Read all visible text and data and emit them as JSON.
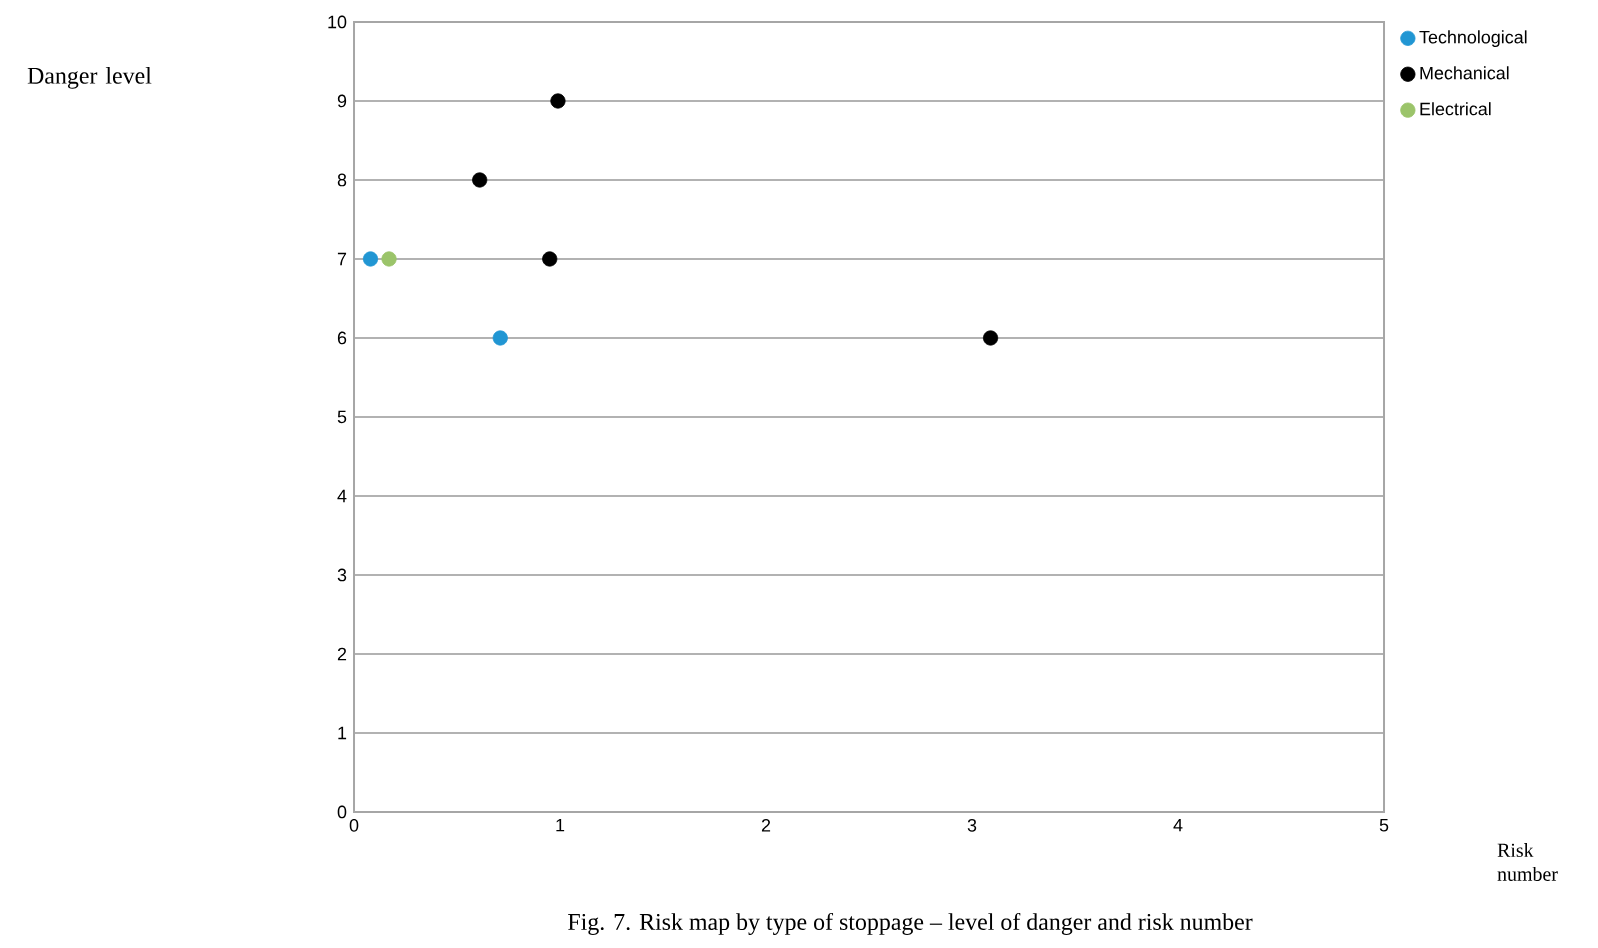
{
  "chart_data": {
    "type": "scatter",
    "annotations": [
      "Danger level",
      "Fig. 7. Risk map by type of stoppage – level of danger and risk number",
      "Risk number"
    ],
    "xlim": [
      0,
      5
    ],
    "ylim": [
      0,
      10
    ],
    "xticks": [
      0,
      1,
      2,
      3,
      4,
      5
    ],
    "yticks": [
      0,
      1,
      2,
      3,
      4,
      5,
      6,
      7,
      8,
      9,
      10
    ],
    "grid": "y",
    "legend": "top right",
    "marker": "circle",
    "series": [
      {
        "name": "Technological",
        "color": "#2196d3",
        "x": [
          0.08,
          0.71
        ],
        "values": [
          7,
          6
        ]
      },
      {
        "name": "Mechanical",
        "color": "#000000",
        "x": [
          0.99,
          0.61,
          0.95,
          3.09
        ],
        "values": [
          9,
          8,
          7,
          6
        ]
      },
      {
        "name": "Electrical",
        "color": "#9bc46a",
        "x": [
          0.17
        ],
        "values": [
          7
        ]
      }
    ]
  }
}
